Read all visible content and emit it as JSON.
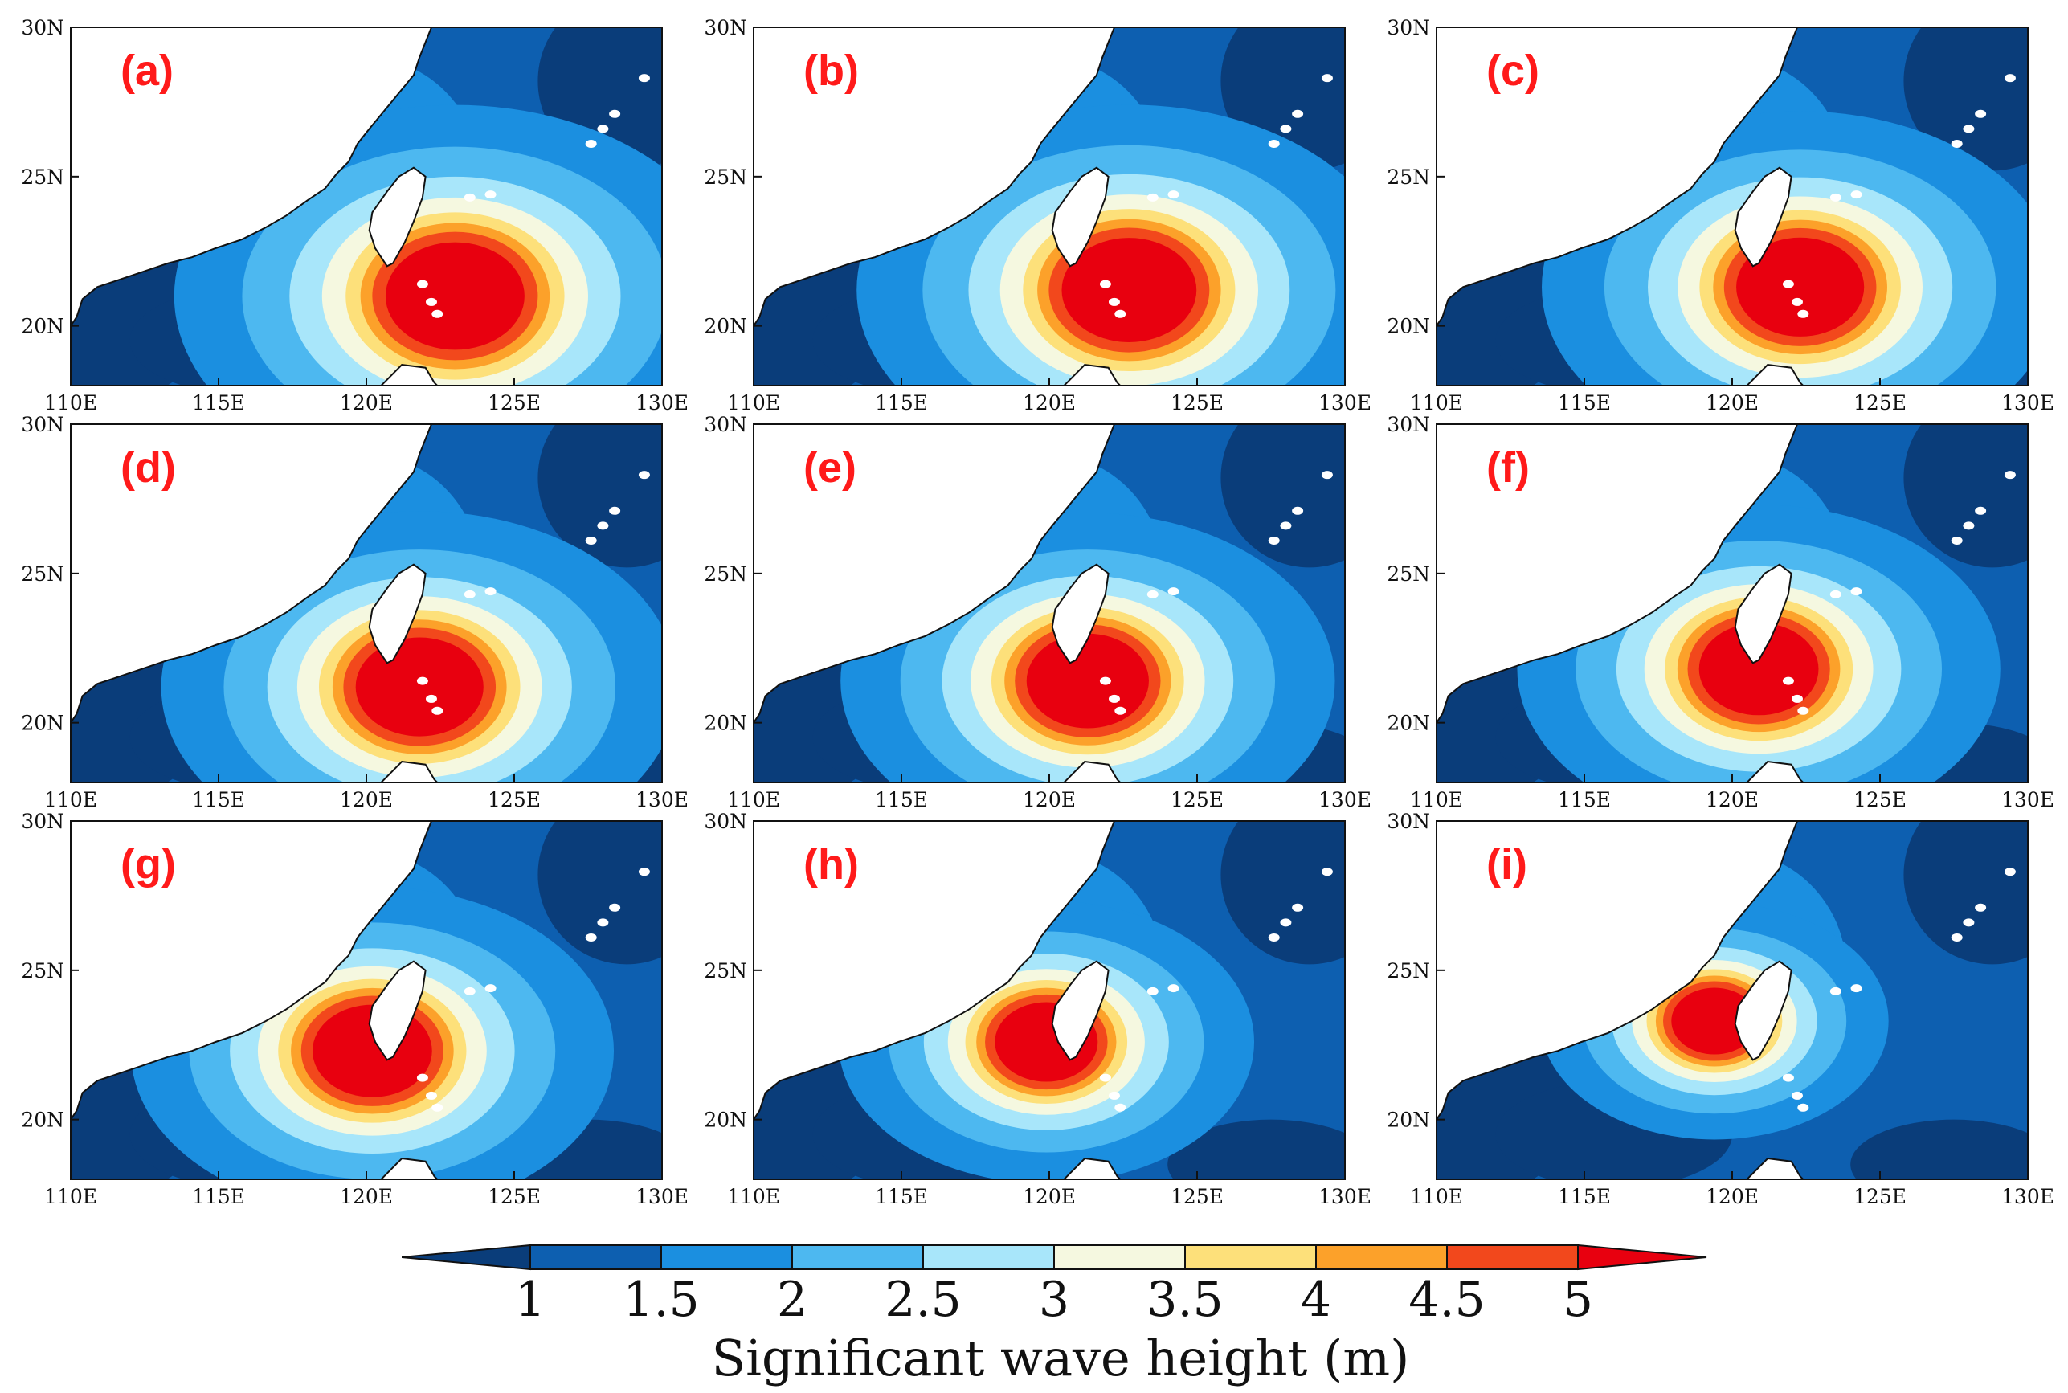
{
  "figure": {
    "panels": [
      {
        "label": "(a)",
        "core": [
          123.0,
          21.0
        ],
        "scale": 1.0
      },
      {
        "label": "(b)",
        "core": [
          122.7,
          21.2
        ],
        "scale": 0.97
      },
      {
        "label": "(c)",
        "core": [
          122.3,
          21.3
        ],
        "scale": 0.92
      },
      {
        "label": "(d)",
        "core": [
          121.8,
          21.2
        ],
        "scale": 0.92
      },
      {
        "label": "(e)",
        "core": [
          121.3,
          21.4
        ],
        "scale": 0.88
      },
      {
        "label": "(f)",
        "core": [
          120.9,
          21.8
        ],
        "scale": 0.86
      },
      {
        "label": "(g)",
        "core": [
          120.2,
          22.3
        ],
        "scale": 0.86
      },
      {
        "label": "(h)",
        "core": [
          119.9,
          22.6
        ],
        "scale": 0.74
      },
      {
        "label": "(i)",
        "core": [
          119.4,
          23.3
        ],
        "scale": 0.62
      }
    ],
    "axes": {
      "lon_range": [
        110,
        130
      ],
      "lat_range": [
        18,
        30
      ],
      "lon_ticks": [
        {
          "v": 110,
          "t": "110E"
        },
        {
          "v": 115,
          "t": "115E"
        },
        {
          "v": 120,
          "t": "120E"
        },
        {
          "v": 125,
          "t": "125E"
        },
        {
          "v": 130,
          "t": "130E"
        }
      ],
      "lat_ticks": [
        {
          "v": 20,
          "t": "20N"
        },
        {
          "v": 25,
          "t": "25N"
        },
        {
          "v": 30,
          "t": "30N"
        }
      ]
    },
    "colorbar": {
      "title": "Significant wave height (m)",
      "tick_labels": [
        "1",
        "1.5",
        "2",
        "2.5",
        "3",
        "3.5",
        "4",
        "4.5",
        "5"
      ],
      "colors": [
        "#0a3d7a",
        "#0d5fb0",
        "#1b8fe0",
        "#4db8f0",
        "#a8e6fa",
        "#f5f8e0",
        "#fde07a",
        "#fca12a",
        "#f2481c",
        "#e8000f"
      ]
    }
  }
}
